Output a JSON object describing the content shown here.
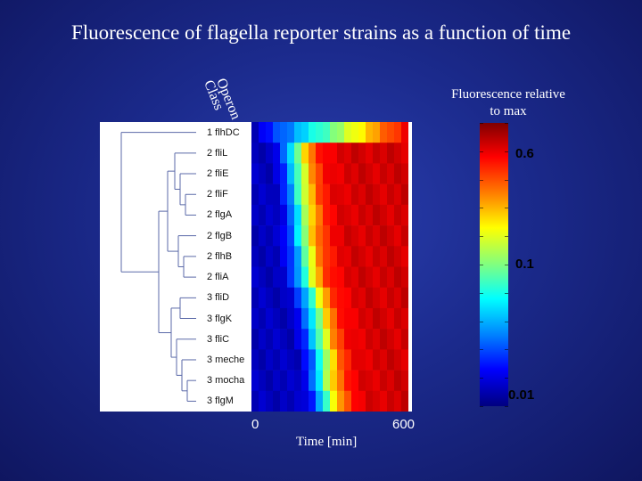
{
  "title": "Fluorescence of flagella reporter strains as a function of time",
  "column_headers": {
    "class": "Class",
    "operon": "Operon"
  },
  "chart_data": {
    "type": "heatmap",
    "title": "Fluorescence of flagella reporter strains as a function of time",
    "xlabel": "Time [min]",
    "x_ticks": [
      "0",
      "600"
    ],
    "xlim": [
      0,
      600
    ],
    "rows": [
      {
        "class": "1",
        "operon": "flhDC",
        "label": "1 flhDC"
      },
      {
        "class": "2",
        "operon": "fliL",
        "label": "2 fliL"
      },
      {
        "class": "2",
        "operon": "fliE",
        "label": "2 fliE"
      },
      {
        "class": "2",
        "operon": "fliF",
        "label": "2 fliF"
      },
      {
        "class": "2",
        "operon": "flgA",
        "label": "2 flgA"
      },
      {
        "class": "2",
        "operon": "flgB",
        "label": "2 flgB"
      },
      {
        "class": "2",
        "operon": "flhB",
        "label": "2 flhB"
      },
      {
        "class": "2",
        "operon": "fliA",
        "label": "2 fliA"
      },
      {
        "class": "3",
        "operon": "fliD",
        "label": "3 fliD"
      },
      {
        "class": "3",
        "operon": "flgK",
        "label": "3 flgK"
      },
      {
        "class": "3",
        "operon": "fliC",
        "label": "3 fliC"
      },
      {
        "class": "3",
        "operon": "meche",
        "label": "3 meche"
      },
      {
        "class": "3",
        "operon": "mocha",
        "label": "3 mocha"
      },
      {
        "class": "3",
        "operon": "flgM",
        "label": "3 flgM"
      }
    ],
    "rise_time_min": [
      0,
      110,
      120,
      125,
      135,
      135,
      145,
      150,
      175,
      190,
      200,
      215,
      215,
      230
    ],
    "colorbar": {
      "title": "Fluorescence relative to max",
      "scale": "log",
      "range": [
        0.01,
        1
      ],
      "tick_labels": [
        {
          "value": 0.6,
          "label": "0.6"
        },
        {
          "value": 0.1,
          "label": "0.1"
        },
        {
          "value": 0.01,
          "label": "0.01"
        }
      ]
    }
  }
}
